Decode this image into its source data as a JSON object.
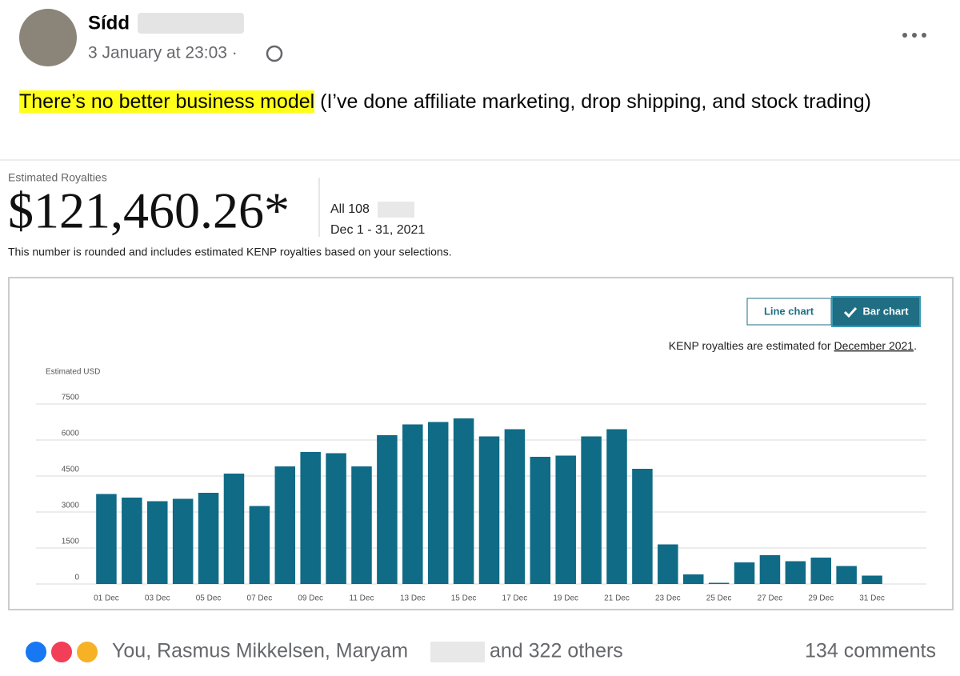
{
  "post": {
    "author": "Sídd",
    "timestamp": "3 January at 23:03 ·",
    "highlight": "There’s no better business model",
    "text": "(I’ve done affiliate marketing, drop shipping, and stock trading)"
  },
  "royalties": {
    "label": "Estimated Royalties",
    "amount": "$121,460.26*",
    "scope": "All 108",
    "period": "Dec 1 - 31, 2021",
    "note": "This number is rounded and includes estimated KENP royalties based on your selections."
  },
  "controls": {
    "line_chart": "Line chart",
    "bar_chart": "Bar chart",
    "kenp_note": "KENP royalties are estimated for",
    "kenp_month": "December 2021",
    "kenp_end": "."
  },
  "chart_data": {
    "type": "bar",
    "y_label": "Estimated USD",
    "categories": [
      "01 Dec",
      null,
      "03 Dec",
      null,
      "05 Dec",
      null,
      "07 Dec",
      null,
      "09 Dec",
      null,
      "11 Dec",
      null,
      "13 Dec",
      null,
      "15 Dec",
      null,
      "17 Dec",
      null,
      "19 Dec",
      null,
      "21 Dec",
      null,
      "23 Dec",
      null,
      "25 Dec",
      null,
      "27 Dec",
      null,
      "29 Dec",
      null,
      "31 Dec"
    ],
    "values": [
      3750,
      3600,
      3450,
      3550,
      3800,
      4600,
      3250,
      4900,
      5500,
      5450,
      4900,
      6200,
      6650,
      6750,
      6900,
      6150,
      6450,
      5300,
      5350,
      6150,
      6450,
      4800,
      1650,
      400,
      50,
      900,
      1200,
      950,
      1100,
      750,
      350
    ],
    "color": "#0f6b86",
    "ylim": [
      0,
      7500
    ],
    "yticks": [
      0,
      1500,
      3000,
      4500,
      6000,
      7500
    ],
    "grid": true
  },
  "reactions": {
    "names": "You, Rasmus Mikkelsen, Maryam",
    "others": "and 322 others",
    "comments": "134 comments"
  }
}
